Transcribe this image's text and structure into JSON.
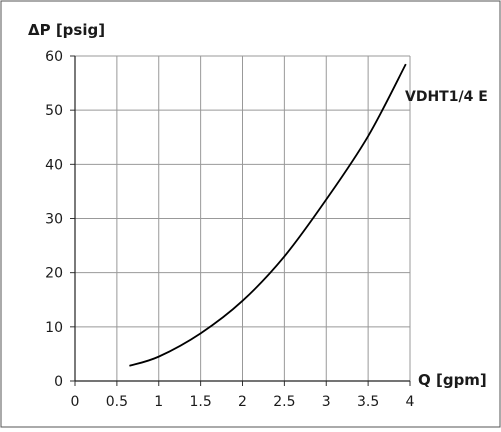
{
  "chart_data": {
    "type": "line",
    "title": "",
    "xlabel": "Q [gpm]",
    "ylabel": "ΔP [psig]",
    "xlim": [
      0,
      4
    ],
    "ylim": [
      0,
      60
    ],
    "x_ticks": [
      0,
      0.5,
      1,
      1.5,
      2,
      2.5,
      3,
      3.5,
      4
    ],
    "x_tick_labels": [
      "0",
      "0.5",
      "1",
      "1.5",
      "2",
      "2.5",
      "3",
      "3.5",
      "4"
    ],
    "y_ticks": [
      0,
      10,
      20,
      30,
      40,
      50,
      60
    ],
    "y_tick_labels": [
      "0",
      "10",
      "20",
      "30",
      "40",
      "50",
      "60"
    ],
    "grid": true,
    "series": [
      {
        "name": "VDHT1/4 E",
        "color": "#000000",
        "x": [
          0.65,
          1.0,
          1.5,
          2.0,
          2.5,
          3.0,
          3.5,
          3.95
        ],
        "y": [
          2.8,
          4.5,
          8.8,
          14.8,
          23.0,
          33.5,
          45.2,
          58.5
        ]
      }
    ]
  }
}
